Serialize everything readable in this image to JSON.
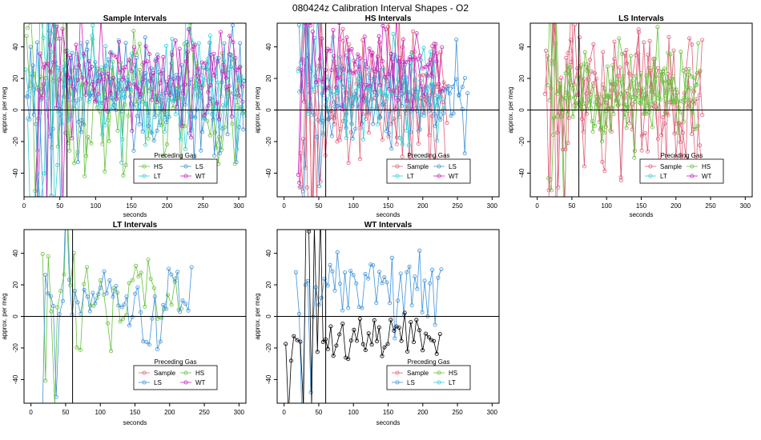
{
  "figure": {
    "title": "080424z   Calibration Interval Shapes - O2"
  },
  "colors": {
    "Sample": "#e0607a",
    "HS": "#66c23c",
    "LS": "#3f93d9",
    "LT": "#2ecfd6",
    "WT": "#cc22bb",
    "WT_series": "#000000",
    "axis": "#000000"
  },
  "chart_data": [
    {
      "type": "line",
      "title": "Sample Intervals",
      "xlabel": "seconds",
      "ylabel": "approx. per meg",
      "xlim": [
        0,
        310
      ],
      "ylim": [
        -55,
        55
      ],
      "xticks": [
        0,
        50,
        100,
        150,
        200,
        250,
        300
      ],
      "yticks": [
        -40,
        -20,
        0,
        20,
        40
      ],
      "hline": 0,
      "vline": 60,
      "legend": {
        "title": "Preceding Gas",
        "entries": [
          "HS",
          "LS",
          "LT",
          "WT"
        ],
        "position": "bottom-right"
      },
      "series": [
        {
          "name": "HS",
          "seed": 11,
          "xmin": 2,
          "xmax": 308,
          "step": 4.2,
          "amp": 45,
          "noise": 14,
          "center": 10,
          "trace": 2
        },
        {
          "name": "LS",
          "seed": 23,
          "xmin": 2,
          "xmax": 308,
          "step": 4.0,
          "amp": 38,
          "noise": 12,
          "center": 8,
          "trace": 2
        },
        {
          "name": "LT",
          "seed": 37,
          "xmin": 2,
          "xmax": 308,
          "step": 4.6,
          "amp": 45,
          "noise": 14,
          "center": 12,
          "trace": 2
        },
        {
          "name": "WT",
          "seed": 41,
          "xmin": 15,
          "xmax": 308,
          "step": 4.3,
          "amp": 30,
          "noise": 12,
          "center": 22,
          "trace": 2
        }
      ]
    },
    {
      "type": "line",
      "title": "HS Intervals",
      "xlabel": "seconds",
      "ylabel": "approx. per meg",
      "xlim": [
        -10,
        310
      ],
      "ylim": [
        -55,
        55
      ],
      "xticks": [
        0,
        50,
        100,
        150,
        200,
        250,
        300
      ],
      "yticks": [
        -40,
        -20,
        0,
        20,
        40
      ],
      "hline": 0,
      "vline": 60,
      "legend": {
        "title": "Preceding Gas",
        "entries": [
          "Sample",
          "LS",
          "LT",
          "WT"
        ],
        "position": "bottom-right"
      },
      "series": [
        {
          "name": "Sample",
          "seed": 53,
          "xmin": 20,
          "xmax": 235,
          "step": 4.1,
          "amp": 45,
          "noise": 14,
          "center": 8,
          "trace": 3
        },
        {
          "name": "LS",
          "seed": 61,
          "xmin": 20,
          "xmax": 265,
          "step": 4.3,
          "amp": 32,
          "noise": 10,
          "center": 10,
          "trace": 2
        },
        {
          "name": "LT",
          "seed": 67,
          "xmin": 20,
          "xmax": 230,
          "step": 4.5,
          "amp": 34,
          "noise": 10,
          "center": 12,
          "trace": 2
        },
        {
          "name": "WT",
          "seed": 71,
          "xmin": 20,
          "xmax": 230,
          "step": 4.2,
          "amp": 24,
          "noise": 12,
          "center": 26,
          "trace": 2
        }
      ]
    },
    {
      "type": "line",
      "title": "LS Intervals",
      "xlabel": "seconds",
      "ylabel": "approx. per meg",
      "xlim": [
        -10,
        310
      ],
      "ylim": [
        -55,
        55
      ],
      "xticks": [
        0,
        50,
        100,
        150,
        200,
        250,
        300
      ],
      "yticks": [
        -40,
        -20,
        0,
        20,
        40
      ],
      "hline": 0,
      "vline": 60,
      "legend": {
        "title": "Preceding Gas",
        "entries": [
          "Sample",
          "HS",
          "LT",
          "WT"
        ],
        "position": "bottom-right"
      },
      "series": [
        {
          "name": "Sample",
          "seed": 83,
          "xmin": 10,
          "xmax": 240,
          "step": 4.2,
          "amp": 45,
          "noise": 14,
          "center": 6,
          "trace": 3
        },
        {
          "name": "HS",
          "seed": 89,
          "xmin": 15,
          "xmax": 235,
          "step": 4.0,
          "amp": 30,
          "noise": 9,
          "center": 12,
          "trace": 3
        }
      ]
    },
    {
      "type": "line",
      "title": "LT Intervals",
      "xlabel": "seconds",
      "ylabel": "approx. per meg",
      "xlim": [
        -10,
        310
      ],
      "ylim": [
        -55,
        55
      ],
      "xticks": [
        0,
        50,
        100,
        150,
        200,
        250,
        300
      ],
      "yticks": [
        -40,
        -20,
        0,
        20,
        40
      ],
      "hline": 0,
      "vline": 60,
      "legend": {
        "title": "Preceding Gas",
        "entries": [
          "Sample",
          "HS",
          "LS",
          "WT"
        ],
        "position": "bottom-right"
      },
      "series": [
        {
          "name": "HS",
          "seed": 97,
          "xmin": 15,
          "xmax": 220,
          "step": 4.6,
          "amp": 28,
          "noise": 10,
          "center": 10,
          "trace": 1
        },
        {
          "name": "LS",
          "seed": 101,
          "xmin": 15,
          "xmax": 235,
          "step": 4.1,
          "amp": 26,
          "noise": 10,
          "center": 8,
          "trace": 1
        }
      ]
    },
    {
      "type": "line",
      "title": "WT Intervals",
      "xlabel": "seconds",
      "ylabel": "approx. per meg",
      "xlim": [
        -10,
        310
      ],
      "ylim": [
        -55,
        55
      ],
      "xticks": [
        0,
        50,
        100,
        150,
        200,
        250,
        300
      ],
      "yticks": [
        -40,
        -20,
        0,
        20,
        40
      ],
      "hline": 0,
      "vline": 60,
      "legend": {
        "title": "Preceding Gas",
        "entries": [
          "Sample",
          "HS",
          "LS",
          "LT"
        ],
        "position": "bottom-right"
      },
      "series": [
        {
          "name": "LS",
          "seed": 107,
          "xmin": 15,
          "xmax": 230,
          "step": 4.0,
          "amp": 22,
          "noise": 10,
          "center": 20,
          "trace": 1
        },
        {
          "name": "WT_series",
          "seed": 113,
          "xmin": 0,
          "xmax": 225,
          "step": 4.0,
          "amp": 14,
          "noise": 8,
          "center": -15,
          "trace": 1
        }
      ]
    }
  ]
}
